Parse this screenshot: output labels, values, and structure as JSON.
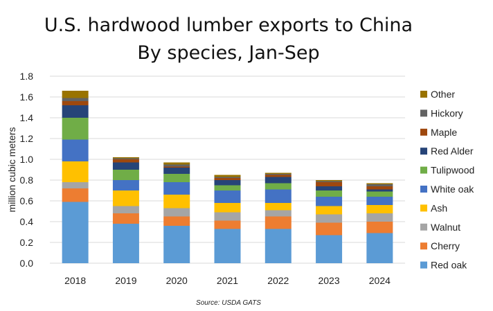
{
  "chart_data": {
    "type": "bar",
    "stacked": true,
    "title": "U.S. hardwood lumber exports to China",
    "subtitle": "By species, Jan-Sep",
    "xlabel": "",
    "ylabel": "million cubic meters",
    "ylim": [
      0,
      1.8
    ],
    "yticks": [
      "0.0",
      "0.2",
      "0.4",
      "0.6",
      "0.8",
      "1.0",
      "1.2",
      "1.4",
      "1.6",
      "1.8"
    ],
    "grid": true,
    "legend_position": "right",
    "source": "Source: USDA GATS",
    "categories": [
      "2018",
      "2019",
      "2020",
      "2021",
      "2022",
      "2023",
      "2024"
    ],
    "series": [
      {
        "name": "Red oak",
        "color": "#5B9BD5",
        "values": [
          0.59,
          0.38,
          0.36,
          0.33,
          0.33,
          0.27,
          0.29
        ]
      },
      {
        "name": "Cherry",
        "color": "#ED7D31",
        "values": [
          0.13,
          0.1,
          0.09,
          0.08,
          0.12,
          0.12,
          0.11
        ]
      },
      {
        "name": "Walnut",
        "color": "#A5A5A5",
        "values": [
          0.06,
          0.07,
          0.08,
          0.08,
          0.06,
          0.08,
          0.08
        ]
      },
      {
        "name": "Ash",
        "color": "#FFC000",
        "values": [
          0.2,
          0.15,
          0.13,
          0.09,
          0.07,
          0.08,
          0.08
        ]
      },
      {
        "name": "White oak",
        "color": "#4472C4",
        "values": [
          0.21,
          0.1,
          0.12,
          0.12,
          0.13,
          0.09,
          0.08
        ]
      },
      {
        "name": "Tulipwood",
        "color": "#70AD47",
        "values": [
          0.21,
          0.1,
          0.08,
          0.05,
          0.06,
          0.06,
          0.05
        ]
      },
      {
        "name": "Red Alder",
        "color": "#264478",
        "values": [
          0.12,
          0.07,
          0.06,
          0.05,
          0.06,
          0.04,
          0.02
        ]
      },
      {
        "name": "Maple",
        "color": "#9E480E",
        "values": [
          0.04,
          0.03,
          0.01,
          0.02,
          0.02,
          0.04,
          0.03
        ]
      },
      {
        "name": "Hickory",
        "color": "#636363",
        "values": [
          0.03,
          0.01,
          0.02,
          0.01,
          0.01,
          0.01,
          0.02
        ]
      },
      {
        "name": "Other",
        "color": "#997300",
        "values": [
          0.07,
          0.01,
          0.02,
          0.02,
          0.01,
          0.01,
          0.01
        ]
      }
    ]
  }
}
